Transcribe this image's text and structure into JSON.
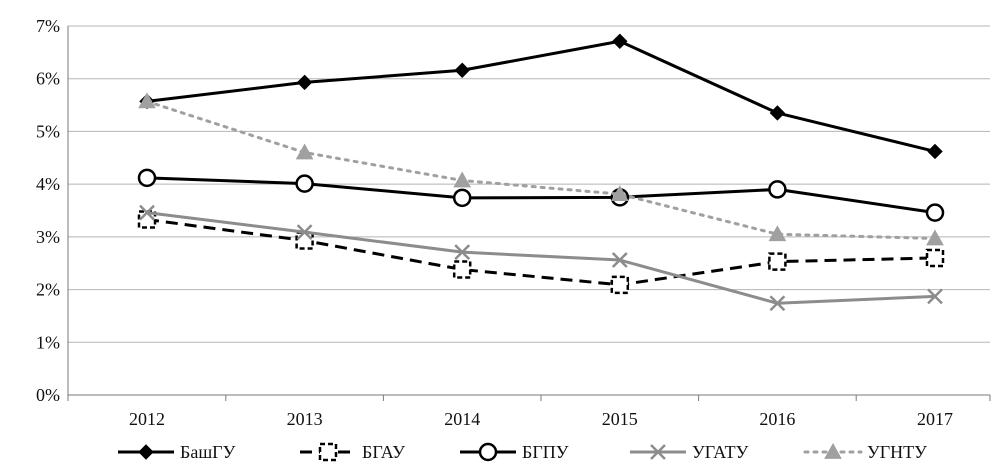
{
  "chart_data": {
    "type": "line",
    "title": "",
    "xlabel": "",
    "ylabel": "",
    "categories": [
      "2012",
      "2013",
      "2014",
      "2015",
      "2016",
      "2017"
    ],
    "ylim": [
      0,
      7
    ],
    "yticks": [
      0,
      1,
      2,
      3,
      4,
      5,
      6,
      7
    ],
    "ytick_labels": [
      "0%",
      "1%",
      "2%",
      "3%",
      "4%",
      "5%",
      "6%",
      "7%"
    ],
    "grid": true,
    "legend_position": "bottom",
    "series": [
      {
        "name": "БашГУ",
        "values": [
          5.57,
          5.93,
          6.16,
          6.71,
          5.35,
          4.62
        ],
        "color": "#000000",
        "dash": "solid",
        "marker": "diamond"
      },
      {
        "name": "БГАУ",
        "values": [
          3.33,
          2.93,
          2.38,
          2.09,
          2.53,
          2.6
        ],
        "color": "#000000",
        "dash": "dashed",
        "marker": "open-square"
      },
      {
        "name": "БГПУ",
        "values": [
          4.12,
          4.01,
          3.74,
          3.75,
          3.9,
          3.46
        ],
        "color": "#000000",
        "dash": "solid",
        "marker": "open-circle"
      },
      {
        "name": "УГАТУ",
        "values": [
          3.46,
          3.09,
          2.71,
          2.56,
          1.74,
          1.87
        ],
        "color": "#8c8c8c",
        "dash": "solid",
        "marker": "x"
      },
      {
        "name": "УГНТУ",
        "values": [
          5.57,
          4.6,
          4.07,
          3.81,
          3.05,
          2.97
        ],
        "color": "#a0a0a0",
        "dash": "dotted",
        "marker": "triangle"
      }
    ]
  }
}
